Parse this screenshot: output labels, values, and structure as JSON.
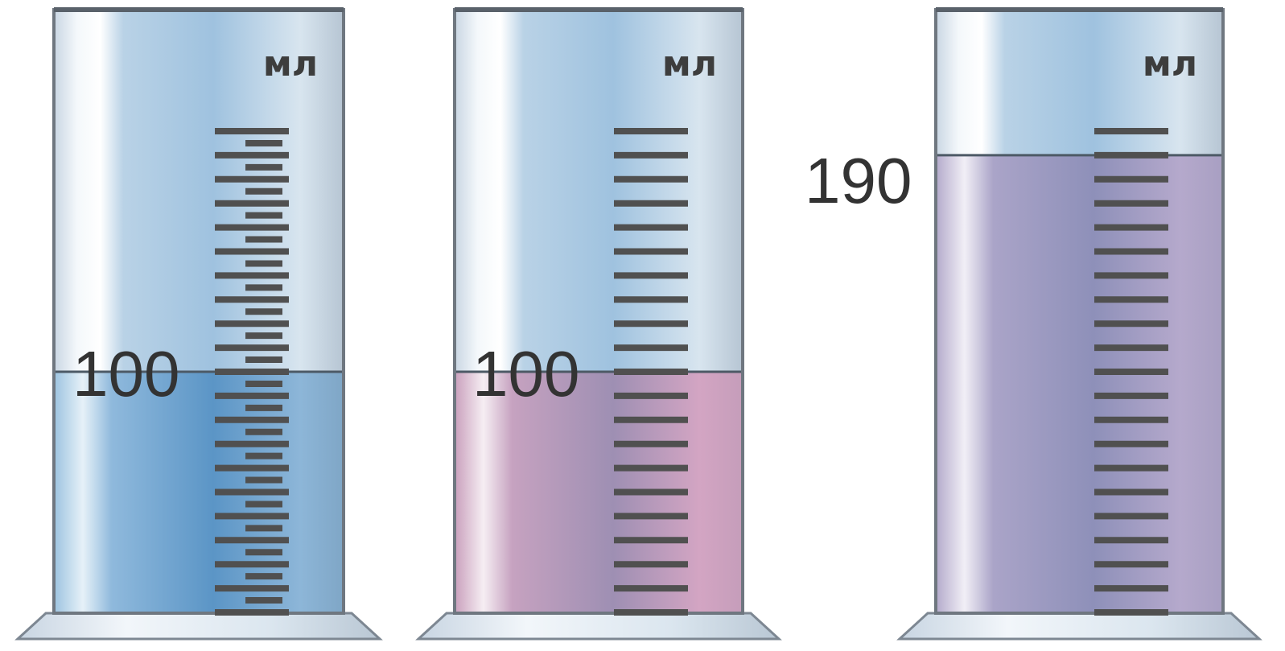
{
  "unit_label": "мл",
  "cylinders": [
    {
      "name": "cylinder-1",
      "unit_label": "мл",
      "level_label": "100",
      "level_ml": 100,
      "liquid_color": "#7fb1d8",
      "liquid_color_dark": "#5b95c6",
      "minor_ticks": true
    },
    {
      "name": "cylinder-2",
      "unit_label": "мл",
      "level_label": "100",
      "level_ml": 100,
      "liquid_color": "#d3a5c3",
      "liquid_color_dark": "#9e8fb3",
      "minor_ticks": false
    },
    {
      "name": "cylinder-3",
      "unit_label": "мл",
      "level_label": "190",
      "level_ml": 190,
      "liquid_color": "#b5a9cc",
      "liquid_color_dark": "#8e90b9",
      "minor_ticks": false
    }
  ]
}
